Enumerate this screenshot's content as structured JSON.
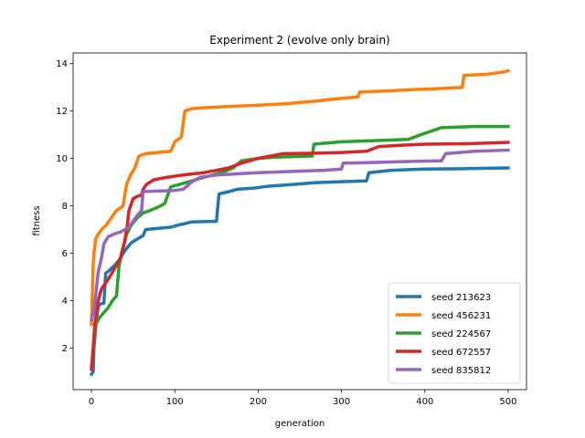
{
  "chart_data": {
    "type": "line",
    "title": "Experiment 2 (evolve only brain)",
    "xlabel": "generation",
    "ylabel": "fitness",
    "xlim": [
      -22,
      522
    ],
    "ylim": [
      0.25,
      14.45
    ],
    "xticks": [
      0,
      100,
      200,
      300,
      400,
      500
    ],
    "yticks": [
      2,
      4,
      6,
      8,
      10,
      12,
      14
    ],
    "grid": false,
    "legend_position": "lower-right",
    "series": [
      {
        "name": "seed 213623",
        "color": "#1f77b4",
        "points": [
          [
            0,
            0.9
          ],
          [
            2,
            1.0
          ],
          [
            3,
            2.0
          ],
          [
            5,
            2.8
          ],
          [
            7,
            3.5
          ],
          [
            9,
            3.85
          ],
          [
            15,
            3.9
          ],
          [
            17,
            5.15
          ],
          [
            22,
            5.3
          ],
          [
            28,
            5.5
          ],
          [
            33,
            5.7
          ],
          [
            38,
            6.0
          ],
          [
            42,
            6.2
          ],
          [
            48,
            6.45
          ],
          [
            55,
            6.6
          ],
          [
            62,
            6.75
          ],
          [
            65,
            7.0
          ],
          [
            80,
            7.05
          ],
          [
            95,
            7.1
          ],
          [
            105,
            7.2
          ],
          [
            112,
            7.25
          ],
          [
            120,
            7.32
          ],
          [
            150,
            7.35
          ],
          [
            153,
            8.5
          ],
          [
            165,
            8.6
          ],
          [
            175,
            8.7
          ],
          [
            195,
            8.75
          ],
          [
            210,
            8.82
          ],
          [
            240,
            8.9
          ],
          [
            270,
            8.98
          ],
          [
            300,
            9.02
          ],
          [
            330,
            9.05
          ],
          [
            333,
            9.4
          ],
          [
            360,
            9.5
          ],
          [
            400,
            9.55
          ],
          [
            450,
            9.57
          ],
          [
            500,
            9.6
          ]
        ]
      },
      {
        "name": "seed 456231",
        "color": "#ff7f0e",
        "points": [
          [
            0,
            3.0
          ],
          [
            2,
            5.5
          ],
          [
            3,
            6.0
          ],
          [
            5,
            6.6
          ],
          [
            8,
            6.8
          ],
          [
            12,
            7.0
          ],
          [
            18,
            7.2
          ],
          [
            24,
            7.5
          ],
          [
            30,
            7.8
          ],
          [
            38,
            8.0
          ],
          [
            42,
            8.9
          ],
          [
            47,
            9.3
          ],
          [
            52,
            9.6
          ],
          [
            57,
            10.1
          ],
          [
            65,
            10.2
          ],
          [
            80,
            10.25
          ],
          [
            95,
            10.3
          ],
          [
            100,
            10.7
          ],
          [
            108,
            10.9
          ],
          [
            112,
            12.0
          ],
          [
            120,
            12.1
          ],
          [
            140,
            12.15
          ],
          [
            170,
            12.2
          ],
          [
            200,
            12.25
          ],
          [
            230,
            12.3
          ],
          [
            265,
            12.4
          ],
          [
            290,
            12.5
          ],
          [
            320,
            12.6
          ],
          [
            322,
            12.8
          ],
          [
            355,
            12.85
          ],
          [
            385,
            12.9
          ],
          [
            420,
            12.95
          ],
          [
            445,
            13.0
          ],
          [
            447,
            13.5
          ],
          [
            475,
            13.55
          ],
          [
            495,
            13.65
          ],
          [
            500,
            13.7
          ]
        ]
      },
      {
        "name": "seed 224567",
        "color": "#2ca02c",
        "points": [
          [
            0,
            1.2
          ],
          [
            3,
            2.1
          ],
          [
            5,
            3.0
          ],
          [
            10,
            3.3
          ],
          [
            15,
            3.5
          ],
          [
            20,
            3.7
          ],
          [
            25,
            4.0
          ],
          [
            30,
            4.2
          ],
          [
            33,
            5.4
          ],
          [
            36,
            6.0
          ],
          [
            42,
            6.8
          ],
          [
            48,
            7.2
          ],
          [
            55,
            7.5
          ],
          [
            62,
            7.7
          ],
          [
            70,
            7.8
          ],
          [
            80,
            7.95
          ],
          [
            88,
            8.1
          ],
          [
            95,
            8.8
          ],
          [
            110,
            8.95
          ],
          [
            125,
            9.1
          ],
          [
            145,
            9.3
          ],
          [
            160,
            9.45
          ],
          [
            170,
            9.6
          ],
          [
            180,
            9.9
          ],
          [
            200,
            10.0
          ],
          [
            220,
            10.05
          ],
          [
            265,
            10.1
          ],
          [
            267,
            10.6
          ],
          [
            300,
            10.7
          ],
          [
            340,
            10.75
          ],
          [
            380,
            10.8
          ],
          [
            395,
            11.0
          ],
          [
            420,
            11.3
          ],
          [
            460,
            11.35
          ],
          [
            500,
            11.35
          ]
        ]
      },
      {
        "name": "seed 672557",
        "color": "#d62728",
        "points": [
          [
            0,
            1.1
          ],
          [
            2,
            2.0
          ],
          [
            4,
            3.0
          ],
          [
            8,
            4.0
          ],
          [
            12,
            4.5
          ],
          [
            18,
            4.8
          ],
          [
            25,
            5.2
          ],
          [
            30,
            5.5
          ],
          [
            35,
            5.8
          ],
          [
            40,
            6.5
          ],
          [
            43,
            7.2
          ],
          [
            45,
            7.8
          ],
          [
            50,
            8.3
          ],
          [
            55,
            8.4
          ],
          [
            60,
            8.45
          ],
          [
            62,
            8.7
          ],
          [
            66,
            8.9
          ],
          [
            75,
            9.1
          ],
          [
            90,
            9.2
          ],
          [
            110,
            9.3
          ],
          [
            135,
            9.4
          ],
          [
            150,
            9.5
          ],
          [
            165,
            9.6
          ],
          [
            180,
            9.8
          ],
          [
            200,
            10.0
          ],
          [
            230,
            10.2
          ],
          [
            270,
            10.22
          ],
          [
            300,
            10.25
          ],
          [
            330,
            10.3
          ],
          [
            345,
            10.5
          ],
          [
            370,
            10.55
          ],
          [
            400,
            10.6
          ],
          [
            450,
            10.62
          ],
          [
            500,
            10.68
          ]
        ]
      },
      {
        "name": "seed 835812",
        "color": "#9467bd",
        "points": [
          [
            0,
            3.2
          ],
          [
            3,
            3.6
          ],
          [
            5,
            4.2
          ],
          [
            8,
            5.2
          ],
          [
            12,
            5.8
          ],
          [
            15,
            6.4
          ],
          [
            20,
            6.7
          ],
          [
            30,
            6.85
          ],
          [
            35,
            6.9
          ],
          [
            40,
            7.0
          ],
          [
            45,
            7.1
          ],
          [
            50,
            7.35
          ],
          [
            55,
            7.6
          ],
          [
            60,
            7.8
          ],
          [
            62,
            8.6
          ],
          [
            75,
            8.62
          ],
          [
            100,
            8.65
          ],
          [
            110,
            8.7
          ],
          [
            120,
            9.0
          ],
          [
            130,
            9.2
          ],
          [
            150,
            9.3
          ],
          [
            175,
            9.35
          ],
          [
            200,
            9.4
          ],
          [
            240,
            9.45
          ],
          [
            280,
            9.5
          ],
          [
            300,
            9.55
          ],
          [
            302,
            9.8
          ],
          [
            330,
            9.82
          ],
          [
            360,
            9.85
          ],
          [
            390,
            9.88
          ],
          [
            420,
            9.9
          ],
          [
            425,
            10.2
          ],
          [
            460,
            10.3
          ],
          [
            500,
            10.35
          ]
        ]
      }
    ]
  }
}
